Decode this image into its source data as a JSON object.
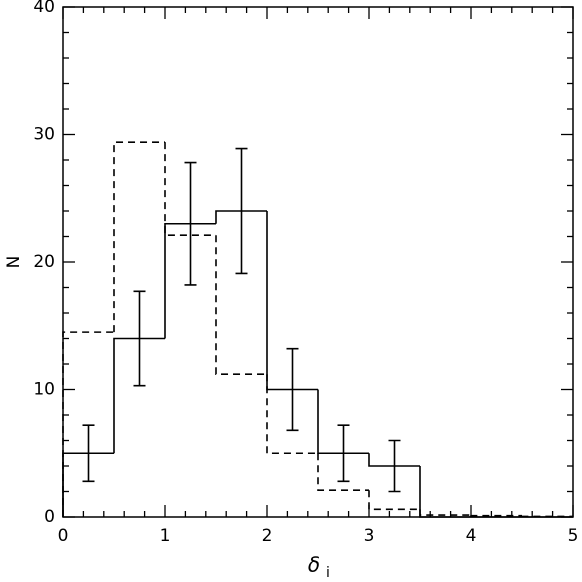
{
  "chart_data": {
    "type": "step-histogram",
    "xlabel": "δ",
    "xlabel_sub": "i",
    "ylabel": "N",
    "bins": [
      0,
      0.5,
      1,
      1.5,
      2,
      2.5,
      3,
      3.5,
      4,
      4.5,
      5
    ],
    "series": [
      {
        "color": "#000000",
        "linestyle": "solid",
        "values": [
          5,
          14,
          23,
          24,
          10,
          5,
          4,
          0,
          0,
          0
        ],
        "errors": [
          2.2,
          3.7,
          4.8,
          4.9,
          3.2,
          2.2,
          2.0,
          null,
          null,
          null
        ]
      },
      {
        "color": "#000000",
        "linestyle": "dashed",
        "values": [
          14.5,
          29.4,
          22.1,
          11.2,
          5,
          2.1,
          0.6,
          0.15,
          0.1,
          0.05
        ]
      }
    ],
    "xlim": [
      0,
      5
    ],
    "ylim": [
      0,
      40
    ],
    "xticks": [
      0,
      1,
      2,
      3,
      4,
      5
    ],
    "yticks": [
      0,
      10,
      20,
      30,
      40
    ],
    "xminorticks": [
      0.2,
      0.4,
      0.6,
      0.8,
      1.2,
      1.4,
      1.6,
      1.8,
      2.2,
      2.4,
      2.6,
      2.8,
      3.2,
      3.4,
      3.6,
      3.8,
      4.2,
      4.4,
      4.6,
      4.8
    ],
    "yminorticks": [
      2,
      4,
      6,
      8,
      12,
      14,
      16,
      18,
      22,
      24,
      26,
      28,
      32,
      34,
      36,
      38
    ]
  }
}
